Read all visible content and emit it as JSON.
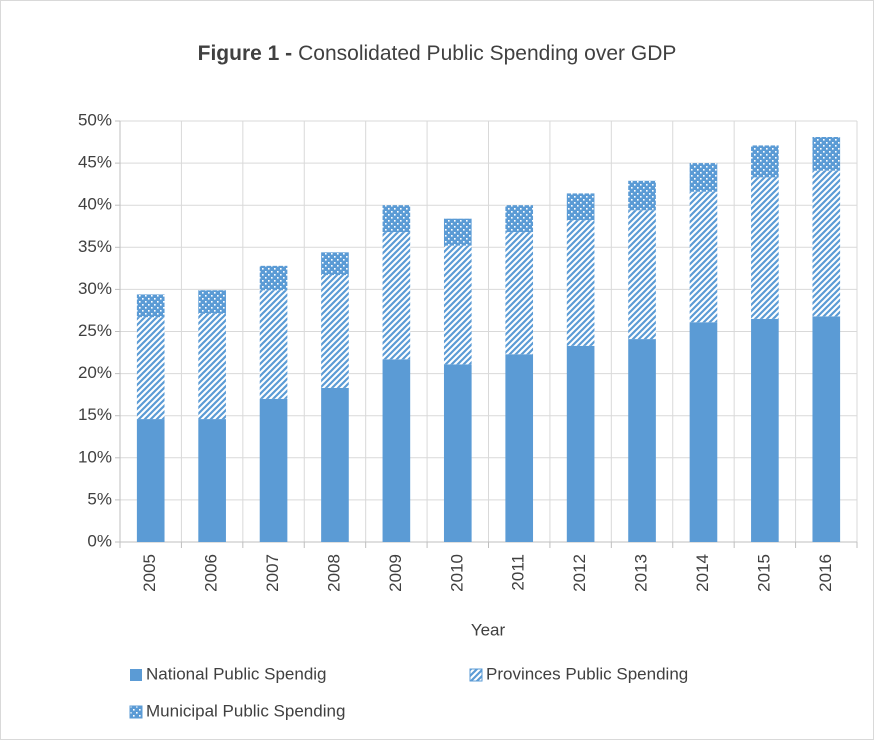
{
  "chart_data": {
    "type": "stacked_bar",
    "title_bold": "Figure 1 -",
    "title": "Consolidated Public Spending over GDP",
    "x_label": "Year",
    "categories": [
      "2005",
      "2006",
      "2007",
      "2008",
      "2009",
      "2010",
      "2011",
      "2012",
      "2013",
      "2014",
      "2015",
      "2016"
    ],
    "series": [
      {
        "name": "National Public Spendig",
        "color": "#5b9bd5",
        "pattern": "solid",
        "values": [
          14.6,
          14.6,
          17.0,
          18.3,
          21.7,
          21.1,
          22.3,
          23.3,
          24.1,
          26.1,
          26.5,
          26.8
        ]
      },
      {
        "name": "Provinces Public Spending",
        "color": "#5b9bd5",
        "pattern": "diagonal",
        "values": [
          12.1,
          12.5,
          12.9,
          13.4,
          15.1,
          14.1,
          14.5,
          14.9,
          15.3,
          15.5,
          16.8,
          17.3
        ]
      },
      {
        "name": "Municipal Public Spending",
        "color": "#5b9bd5",
        "pattern": "dots",
        "values": [
          2.7,
          2.8,
          2.9,
          2.7,
          3.2,
          3.2,
          3.2,
          3.2,
          3.5,
          3.4,
          3.8,
          4.0
        ]
      }
    ],
    "ylim": [
      0,
      50
    ],
    "yticks": [
      {
        "value": 0,
        "label": "0%"
      },
      {
        "value": 5,
        "label": "5%"
      },
      {
        "value": 10,
        "label": "10%"
      },
      {
        "value": 15,
        "label": "15%"
      },
      {
        "value": 20,
        "label": "20%"
      },
      {
        "value": 25,
        "label": "25%"
      },
      {
        "value": 30,
        "label": "30%"
      },
      {
        "value": 35,
        "label": "35%"
      },
      {
        "value": 40,
        "label": "40%"
      },
      {
        "value": 45,
        "label": "45%"
      },
      {
        "value": 50,
        "label": "50%"
      }
    ],
    "grid": true,
    "legend": "bottom"
  }
}
